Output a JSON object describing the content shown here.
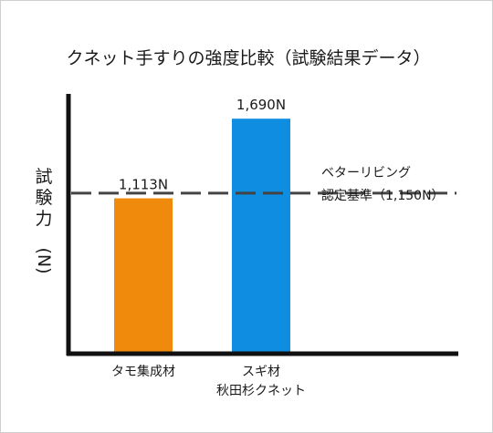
{
  "chart_data": {
    "type": "bar",
    "title": "クネット手すりの強度比較（試験結果データ）",
    "ylabel": "試験力（N）",
    "categories": [
      [
        "タモ集成材"
      ],
      [
        "スギ材",
        "秋田杉クネット"
      ]
    ],
    "values": [
      1113,
      1690
    ],
    "value_labels": [
      "1,113N",
      "1,690N"
    ],
    "colors": [
      "#f08a0c",
      "#0f8de0"
    ],
    "reference_line": {
      "value": 1150,
      "label_line1": "ベターリビング",
      "label_line2": "認定基準（1,150N）",
      "color": "#444444",
      "style": "dashed"
    },
    "ylim": [
      0,
      2200
    ],
    "grid": false,
    "legend": "none"
  }
}
